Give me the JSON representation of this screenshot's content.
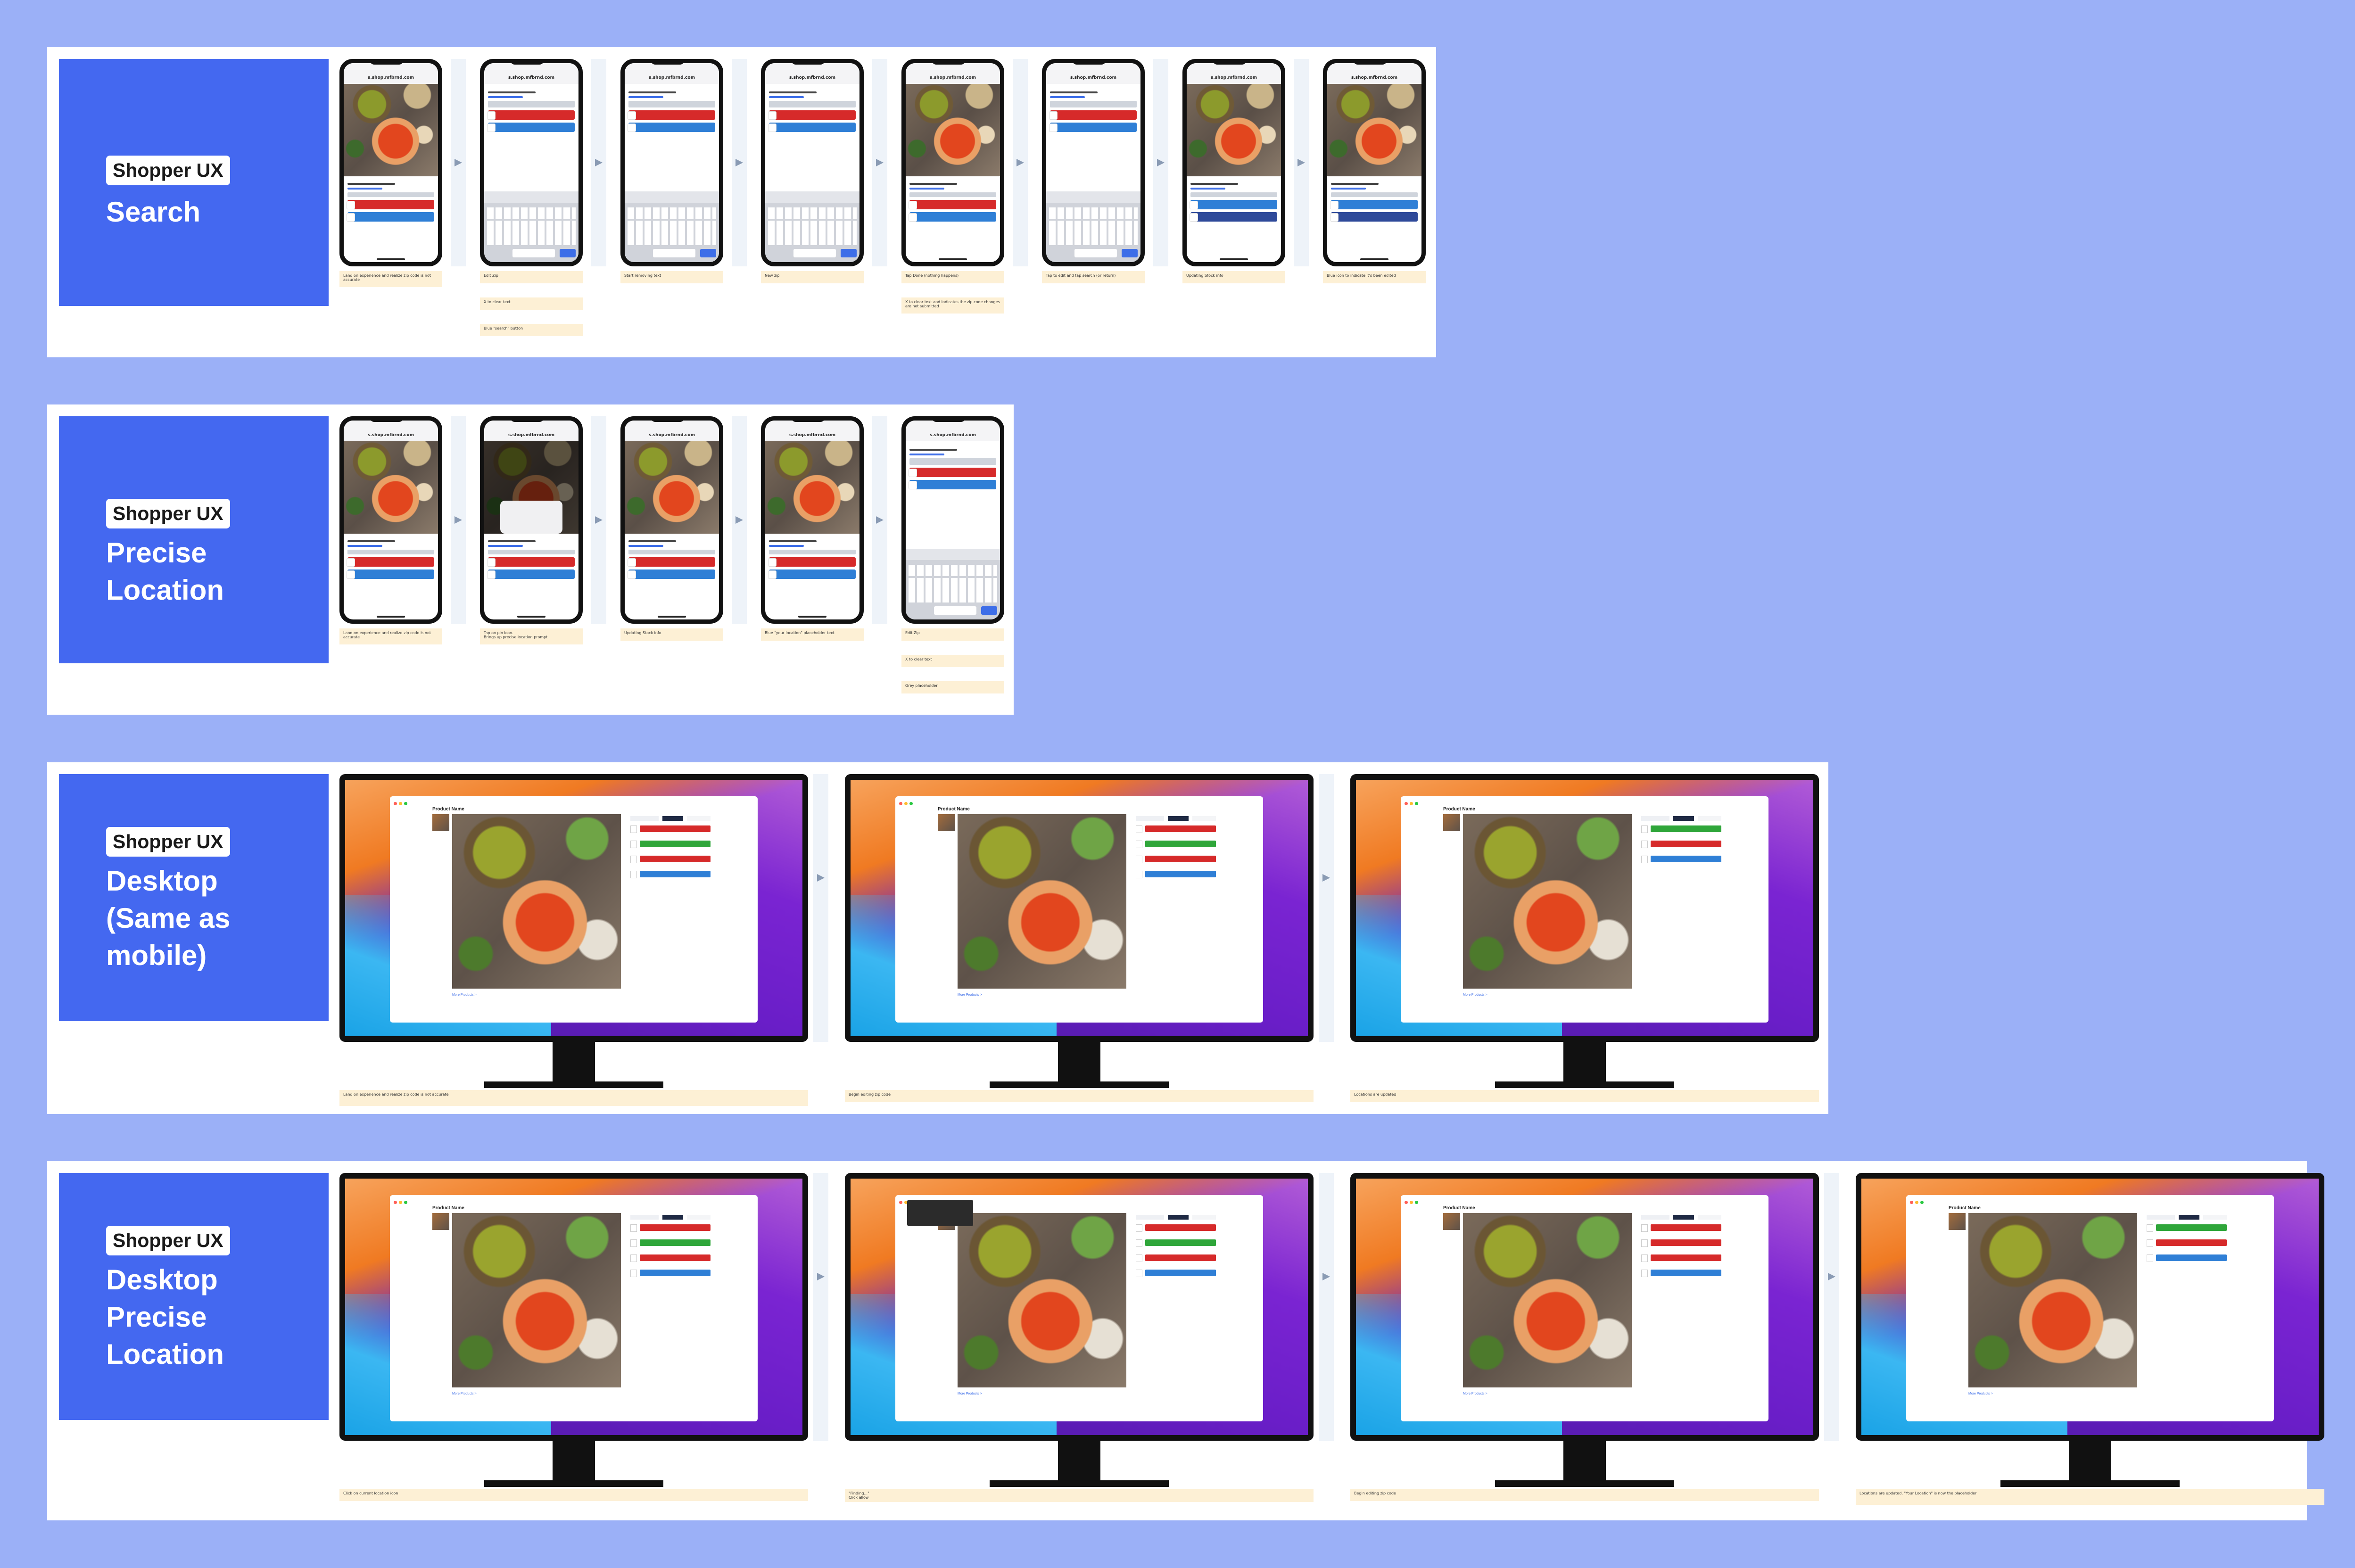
{
  "colors": {
    "background": "#9bb0f7",
    "title_card": "#4468f0",
    "note": "#fdf0d5",
    "red": "#d62a2a",
    "blue": "#2f7fd6",
    "green": "#2fa63a"
  },
  "rows": [
    {
      "pill": "Shopper UX",
      "title": "Search",
      "phones": [
        {
          "url": "s.shop.mfbrnd.com",
          "state": "pdp"
        },
        {
          "url": "s.shop.mfbrnd.com",
          "state": "keyboard"
        },
        {
          "url": "s.shop.mfbrnd.com",
          "state": "keyboard"
        },
        {
          "url": "s.shop.mfbrnd.com",
          "state": "keyboard"
        },
        {
          "url": "s.shop.mfbrnd.com",
          "state": "pdp"
        },
        {
          "url": "s.shop.mfbrnd.com",
          "state": "keyboard"
        },
        {
          "url": "s.shop.mfbrnd.com",
          "state": "pdp-blue"
        },
        {
          "url": "s.shop.mfbrnd.com",
          "state": "pdp-blue"
        }
      ],
      "notes": [
        [
          "Land on experience and realize zip code is not accurate"
        ],
        [
          "Edit Zip",
          "X to clear text",
          "Blue \"search\" button"
        ],
        [
          "Start removing text"
        ],
        [
          "New zip"
        ],
        [
          "Tap Done (nothing happens)",
          "X to clear text and indicates the zip code changes are not submitted"
        ],
        [
          "Tap to edit and tap search (or return)"
        ],
        [
          "Updating Stock info"
        ],
        [
          "Blue icon to indicate it's been edited"
        ]
      ]
    },
    {
      "pill": "Shopper UX",
      "title": "Precise\nLocation",
      "phones": [
        {
          "url": "s.shop.mfbrnd.com",
          "state": "pdp"
        },
        {
          "url": "s.shop.mfbrnd.com",
          "state": "dialog"
        },
        {
          "url": "s.shop.mfbrnd.com",
          "state": "pdp"
        },
        {
          "url": "s.shop.mfbrnd.com",
          "state": "pdp"
        },
        {
          "url": "s.shop.mfbrnd.com",
          "state": "keyboard"
        }
      ],
      "notes": [
        [
          "Land on experience and realize zip code is not accurate"
        ],
        [
          "Tap on pin icon.\nBrings up precise location prompt"
        ],
        [
          "Updating Stock info"
        ],
        [
          "Blue \"your location\" placeholder text"
        ],
        [
          "Edit Zip",
          "X to clear text",
          "Grey placeholder"
        ]
      ]
    },
    {
      "pill": "Shopper UX",
      "title": "Desktop\n(Same as\nmobile)",
      "monitors": [
        {
          "product_name": "Product Name",
          "more_products": "More Products  >",
          "buttons": [
            "red",
            "green",
            "red",
            "blue"
          ],
          "popup": false
        },
        {
          "product_name": "Product Name",
          "more_products": "More Products  >",
          "buttons": [
            "red",
            "green",
            "red",
            "blue"
          ],
          "popup": false
        },
        {
          "product_name": "Product Name",
          "more_products": "More Products  >",
          "buttons": [
            "green",
            "red",
            "blue"
          ],
          "popup": false
        }
      ],
      "notes": [
        [
          "Land on experience and realize zip code is not accurate"
        ],
        [
          "Begin editing zip code"
        ],
        [
          "Locations are updated"
        ]
      ]
    },
    {
      "pill": "Shopper UX",
      "title": "Desktop\nPrecise\nLocation",
      "monitors": [
        {
          "product_name": "Product Name",
          "more_products": "More Products  >",
          "buttons": [
            "red",
            "green",
            "red",
            "blue"
          ],
          "popup": false
        },
        {
          "product_name": "",
          "more_products": "More Products  >",
          "buttons": [
            "red",
            "green",
            "red",
            "blue"
          ],
          "popup": true
        },
        {
          "product_name": "Product Name",
          "more_products": "More Products  >",
          "buttons": [
            "red",
            "red",
            "red",
            "blue"
          ],
          "popup": false
        },
        {
          "product_name": "Product Name",
          "more_products": "More Products  >",
          "buttons": [
            "green",
            "red",
            "blue"
          ],
          "popup": false
        }
      ],
      "notes": [
        [
          "Click on current location icon"
        ],
        [
          "\"Finding...\"\nClick allow"
        ],
        [
          "Begin editing zip code"
        ],
        [
          "Locations are updated, \"Your Location\" is now the placeholder"
        ]
      ]
    }
  ]
}
